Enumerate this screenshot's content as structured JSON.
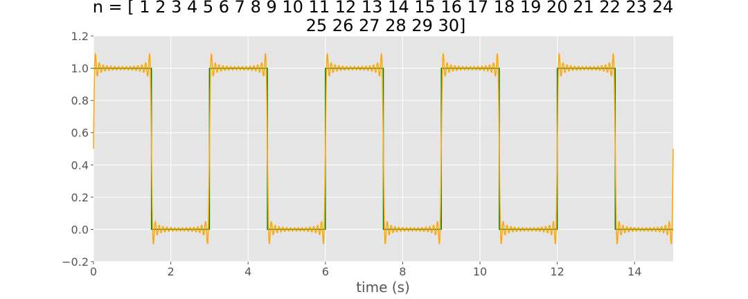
{
  "chart_data": {
    "type": "line",
    "title_lines": [
      "n = [ 1  2  3  4  5  6  7  8  9 10 11 12 13 14 15 16 17 18 19 20 21 22 23 24",
      "25 26 27 28 29 30]"
    ],
    "xlabel": "time (s)",
    "ylabel": "",
    "xlim": [
      0,
      15
    ],
    "ylim": [
      -0.2,
      1.2
    ],
    "x_ticks": [
      0,
      2,
      4,
      6,
      8,
      10,
      12,
      14
    ],
    "x_tick_labels": [
      "0",
      "2",
      "4",
      "6",
      "8",
      "10",
      "12",
      "14"
    ],
    "y_ticks": [
      -0.2,
      0.0,
      0.2,
      0.4,
      0.6,
      0.8,
      1.0,
      1.2
    ],
    "y_tick_labels": [
      "−0.2",
      "0.0",
      "0.2",
      "0.4",
      "0.6",
      "0.8",
      "1.0",
      "1.2"
    ],
    "grid": true,
    "background_color": "#e5e5e5",
    "grid_color": "#ffffff",
    "series": [
      {
        "kind": "square_wave",
        "color": "#008000",
        "period": 3,
        "high_duration": 1.5,
        "high": 1.0,
        "low": 0.0
      },
      {
        "kind": "fourier_partial_sum",
        "color": "#ffa500",
        "period": 3,
        "harmonics": [
          1,
          2,
          3,
          4,
          5,
          6,
          7,
          8,
          9,
          10,
          11,
          12,
          13,
          14,
          15,
          16,
          17,
          18,
          19,
          20,
          21,
          22,
          23,
          24,
          25,
          26,
          27,
          28,
          29,
          30
        ],
        "high": 1.0,
        "low": 0.0
      }
    ]
  }
}
